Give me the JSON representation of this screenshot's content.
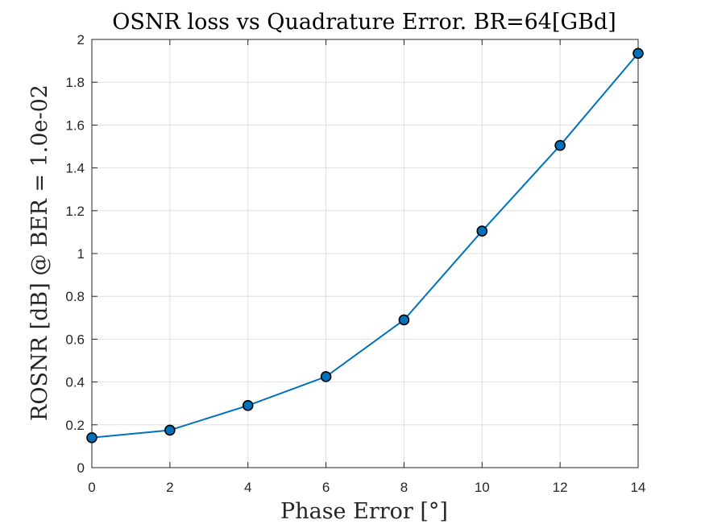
{
  "chart_data": {
    "type": "line",
    "title": "OSNR loss vs Quadrature Error. BR=64[GBd]",
    "xlabel": "Phase Error [°]",
    "ylabel": "ROSNR [dB] @ BER = 1.0e-02",
    "xlim": [
      0,
      14
    ],
    "ylim": [
      0,
      2
    ],
    "xticks": [
      "0",
      "2",
      "4",
      "6",
      "8",
      "10",
      "12",
      "14"
    ],
    "yticks": [
      "0",
      "0.2",
      "0.4",
      "0.6",
      "0.8",
      "1",
      "1.2",
      "1.4",
      "1.6",
      "1.8",
      "2"
    ],
    "grid": true,
    "series": [
      {
        "x": [
          0,
          2,
          4,
          6,
          8,
          10,
          12,
          14
        ],
        "y": [
          0.14,
          0.175,
          0.29,
          0.425,
          0.69,
          1.105,
          1.505,
          1.935
        ],
        "color": "#0072bd",
        "marker": "circle",
        "marker_face": "#0072bd",
        "marker_edge": "#000000"
      }
    ]
  }
}
